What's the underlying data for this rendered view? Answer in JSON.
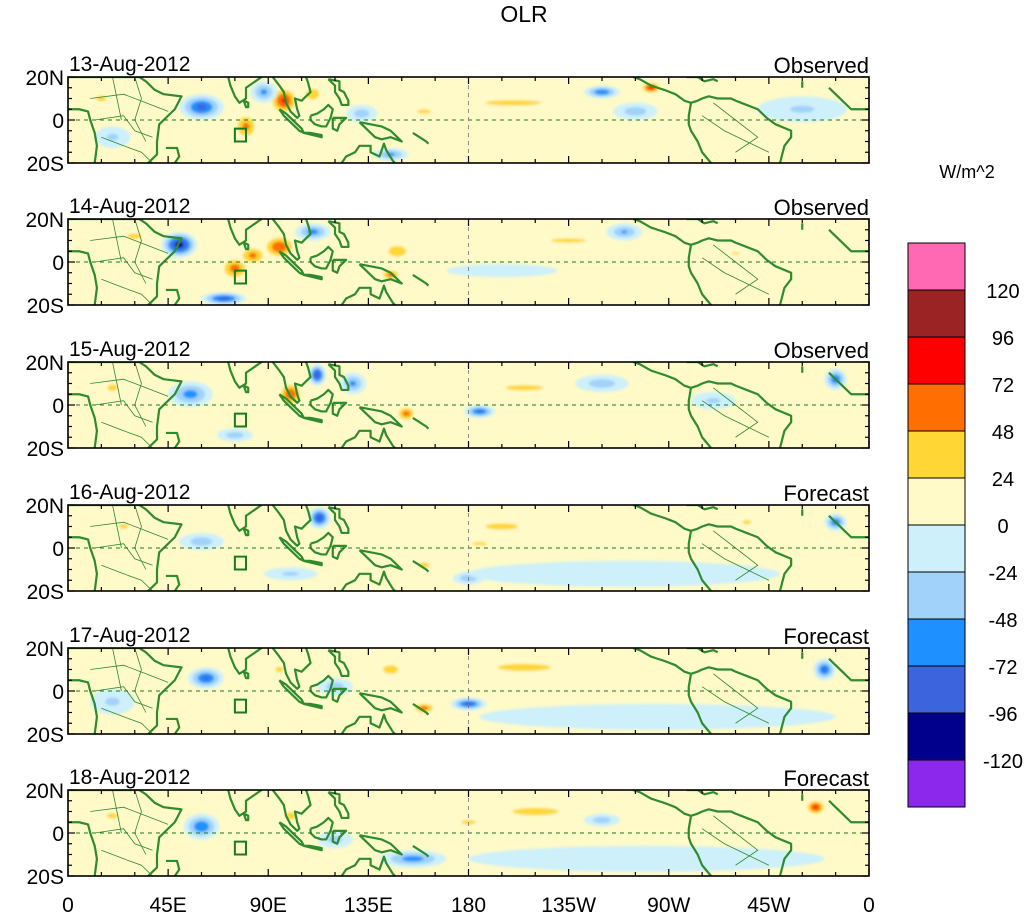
{
  "chart_data": {
    "type": "heatmap",
    "title": "OLR",
    "units": "W/m^2",
    "panels": [
      {
        "date": "13-Aug-2012",
        "label": "Observed"
      },
      {
        "date": "14-Aug-2012",
        "label": "Observed"
      },
      {
        "date": "15-Aug-2012",
        "label": "Observed"
      },
      {
        "date": "16-Aug-2012",
        "label": "Forecast"
      },
      {
        "date": "17-Aug-2012",
        "label": "Forecast"
      },
      {
        "date": "18-Aug-2012",
        "label": "Forecast"
      }
    ],
    "x_ticks": [
      "0",
      "45E",
      "90E",
      "135E",
      "180",
      "135W",
      "90W",
      "45W",
      "0"
    ],
    "x_tick_lons": [
      0,
      45,
      90,
      135,
      180,
      225,
      270,
      315,
      360
    ],
    "y_ticks": [
      "20N",
      "0",
      "20S"
    ],
    "y_tick_lats": [
      20,
      0,
      -20
    ],
    "xlim": [
      0,
      360
    ],
    "ylim": [
      -20,
      20
    ],
    "colorbar": {
      "levels": [
        "120",
        "96",
        "72",
        "48",
        "24",
        "0",
        "-24",
        "-48",
        "-72",
        "-96",
        "-120"
      ],
      "colors": [
        "#ff69b4",
        "#9b2323",
        "#ff0000",
        "#ff6e00",
        "#ffd633",
        "#fffac8",
        "#cdf0fa",
        "#a0d2fa",
        "#1e90ff",
        "#3c64dc",
        "#00008c",
        "#8c28eb"
      ]
    },
    "anomaly_blobs": [
      [
        {
          "lon": 60,
          "lat": 6,
          "rx": 10,
          "ry": 6,
          "v": -80
        },
        {
          "lon": 80,
          "lat": -3,
          "rx": 6,
          "ry": 7,
          "v": 55
        },
        {
          "lon": 97,
          "lat": 9,
          "rx": 7,
          "ry": 7,
          "v": 75
        },
        {
          "lon": 88,
          "lat": 13,
          "rx": 6,
          "ry": 5,
          "v": -55
        },
        {
          "lon": 110,
          "lat": 12,
          "rx": 6,
          "ry": 5,
          "v": 40
        },
        {
          "lon": 132,
          "lat": 3,
          "rx": 7,
          "ry": 4,
          "v": -40
        },
        {
          "lon": 160,
          "lat": 4,
          "rx": 10,
          "ry": 3,
          "v": 30
        },
        {
          "lon": 200,
          "lat": 8,
          "rx": 30,
          "ry": 3,
          "v": 35
        },
        {
          "lon": 240,
          "lat": 13,
          "rx": 8,
          "ry": 3,
          "v": -70
        },
        {
          "lon": 262,
          "lat": 15,
          "rx": 5,
          "ry": 3,
          "v": 80
        },
        {
          "lon": 255,
          "lat": 4,
          "rx": 10,
          "ry": 4,
          "v": -40
        },
        {
          "lon": 20,
          "lat": -8,
          "rx": 8,
          "ry": 5,
          "v": -30
        },
        {
          "lon": 145,
          "lat": -16,
          "rx": 8,
          "ry": 3,
          "v": -55
        },
        {
          "lon": 15,
          "lat": 10,
          "rx": 7,
          "ry": 4,
          "v": 30
        },
        {
          "lon": 330,
          "lat": 5,
          "rx": 20,
          "ry": 6,
          "v": -28
        }
      ],
      [
        {
          "lon": 50,
          "lat": 8,
          "rx": 8,
          "ry": 6,
          "v": -105
        },
        {
          "lon": 75,
          "lat": -3,
          "rx": 7,
          "ry": 6,
          "v": 60
        },
        {
          "lon": 95,
          "lat": 7,
          "rx": 8,
          "ry": 6,
          "v": 70
        },
        {
          "lon": 83,
          "lat": 3,
          "rx": 7,
          "ry": 5,
          "v": 55
        },
        {
          "lon": 110,
          "lat": 14,
          "rx": 8,
          "ry": 4,
          "v": -60
        },
        {
          "lon": 148,
          "lat": 5,
          "rx": 8,
          "ry": 5,
          "v": 40
        },
        {
          "lon": 145,
          "lat": -6,
          "rx": 5,
          "ry": 3,
          "v": 60
        },
        {
          "lon": 70,
          "lat": -17,
          "rx": 10,
          "ry": 3,
          "v": -85
        },
        {
          "lon": 225,
          "lat": 10,
          "rx": 25,
          "ry": 3,
          "v": 30
        },
        {
          "lon": 250,
          "lat": 14,
          "rx": 8,
          "ry": 4,
          "v": -50
        },
        {
          "lon": 300,
          "lat": 4,
          "rx": 10,
          "ry": 3,
          "v": 25
        },
        {
          "lon": 30,
          "lat": 12,
          "rx": 10,
          "ry": 4,
          "v": 30
        },
        {
          "lon": 195,
          "lat": -4,
          "rx": 25,
          "ry": 3,
          "v": -20
        }
      ],
      [
        {
          "lon": 55,
          "lat": 5,
          "rx": 10,
          "ry": 6,
          "v": -60
        },
        {
          "lon": 100,
          "lat": 5,
          "rx": 6,
          "ry": 6,
          "v": 70
        },
        {
          "lon": 112,
          "lat": 14,
          "rx": 4,
          "ry": 5,
          "v": -95
        },
        {
          "lon": 128,
          "lat": 10,
          "rx": 6,
          "ry": 5,
          "v": -55
        },
        {
          "lon": 152,
          "lat": -4,
          "rx": 5,
          "ry": 4,
          "v": 60
        },
        {
          "lon": 185,
          "lat": -3,
          "rx": 7,
          "ry": 3,
          "v": -75
        },
        {
          "lon": 205,
          "lat": 8,
          "rx": 20,
          "ry": 3,
          "v": 35
        },
        {
          "lon": 240,
          "lat": 10,
          "rx": 12,
          "ry": 4,
          "v": -40
        },
        {
          "lon": 75,
          "lat": -14,
          "rx": 8,
          "ry": 3,
          "v": -40
        },
        {
          "lon": 20,
          "lat": 8,
          "rx": 7,
          "ry": 5,
          "v": 30
        },
        {
          "lon": 345,
          "lat": 12,
          "rx": 5,
          "ry": 5,
          "v": -70
        },
        {
          "lon": 290,
          "lat": 2,
          "rx": 10,
          "ry": 4,
          "v": -30
        }
      ],
      [
        {
          "lon": 113,
          "lat": 14,
          "rx": 5,
          "ry": 5,
          "v": -90
        },
        {
          "lon": 60,
          "lat": 3,
          "rx": 10,
          "ry": 4,
          "v": -40
        },
        {
          "lon": 195,
          "lat": 10,
          "rx": 15,
          "ry": 3,
          "v": 40
        },
        {
          "lon": 185,
          "lat": 2,
          "rx": 12,
          "ry": 3,
          "v": 28
        },
        {
          "lon": 160,
          "lat": -8,
          "rx": 6,
          "ry": 3,
          "v": 35
        },
        {
          "lon": 180,
          "lat": -14,
          "rx": 7,
          "ry": 3,
          "v": -45
        },
        {
          "lon": 250,
          "lat": -12,
          "rx": 70,
          "ry": 6,
          "v": -18
        },
        {
          "lon": 345,
          "lat": 12,
          "rx": 5,
          "ry": 4,
          "v": -70
        },
        {
          "lon": 25,
          "lat": 10,
          "rx": 8,
          "ry": 4,
          "v": 28
        },
        {
          "lon": 305,
          "lat": 12,
          "rx": 6,
          "ry": 3,
          "v": 30
        },
        {
          "lon": 100,
          "lat": -12,
          "rx": 12,
          "ry": 3,
          "v": -30
        }
      ],
      [
        {
          "lon": 62,
          "lat": 6,
          "rx": 8,
          "ry": 5,
          "v": -75
        },
        {
          "lon": 160,
          "lat": -8,
          "rx": 6,
          "ry": 3,
          "v": 60
        },
        {
          "lon": 180,
          "lat": -6,
          "rx": 8,
          "ry": 3,
          "v": -80
        },
        {
          "lon": 205,
          "lat": 11,
          "rx": 22,
          "ry": 3,
          "v": 45
        },
        {
          "lon": 145,
          "lat": 10,
          "rx": 7,
          "ry": 4,
          "v": 40
        },
        {
          "lon": 120,
          "lat": 2,
          "rx": 8,
          "ry": 4,
          "v": -40
        },
        {
          "lon": 265,
          "lat": -12,
          "rx": 80,
          "ry": 6,
          "v": -18
        },
        {
          "lon": 340,
          "lat": 10,
          "rx": 5,
          "ry": 5,
          "v": -75
        },
        {
          "lon": 20,
          "lat": -5,
          "rx": 10,
          "ry": 6,
          "v": -30
        },
        {
          "lon": 95,
          "lat": 10,
          "rx": 6,
          "ry": 4,
          "v": 30
        }
      ],
      [
        {
          "lon": 60,
          "lat": 3,
          "rx": 8,
          "ry": 6,
          "v": -70
        },
        {
          "lon": 155,
          "lat": -12,
          "rx": 15,
          "ry": 4,
          "v": -60
        },
        {
          "lon": 210,
          "lat": 10,
          "rx": 25,
          "ry": 4,
          "v": 35
        },
        {
          "lon": 180,
          "lat": 5,
          "rx": 10,
          "ry": 3,
          "v": 30
        },
        {
          "lon": 240,
          "lat": 6,
          "rx": 8,
          "ry": 3,
          "v": -40
        },
        {
          "lon": 260,
          "lat": -12,
          "rx": 80,
          "ry": 6,
          "v": -18
        },
        {
          "lon": 336,
          "lat": 12,
          "rx": 5,
          "ry": 4,
          "v": 75
        },
        {
          "lon": 100,
          "lat": 8,
          "rx": 6,
          "ry": 4,
          "v": 35
        },
        {
          "lon": 20,
          "lat": 8,
          "rx": 8,
          "ry": 4,
          "v": 30
        },
        {
          "lon": 120,
          "lat": -3,
          "rx": 8,
          "ry": 4,
          "v": -35
        }
      ]
    ]
  }
}
